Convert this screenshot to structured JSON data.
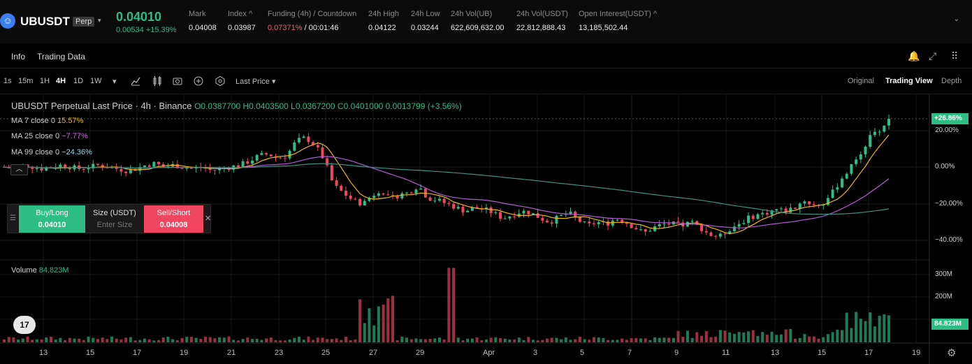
{
  "header": {
    "logo_glyph": "☺",
    "symbol": "UBUSDT",
    "badge": "Perp",
    "caret": "▾",
    "last_price": "0.04010",
    "change": "0.00534 +15.39%",
    "stats": [
      {
        "label": "Mark",
        "value": "0.04008"
      },
      {
        "label": "Index ^",
        "value": "0.03987"
      },
      {
        "label": "Funding (4h) / Countdown",
        "value_red": "0.07371%",
        "value": " / 00:01:46"
      },
      {
        "label": "24h High",
        "value": "0.04122"
      },
      {
        "label": "24h Low",
        "value": "0.03244"
      },
      {
        "label": "24h Vol(UB)",
        "value": "622,609,632.00"
      },
      {
        "label": "24h Vol(USDT)",
        "value": "22,812,888.43"
      },
      {
        "label": "Open Interest(USDT) ^",
        "value": ""
      }
    ],
    "open_interest_value": "13,185,502.44",
    "expand_caret": "⌄"
  },
  "tabs": {
    "info": "Info",
    "trading_data": "Trading Data",
    "bell_icon": "🔔",
    "expand_icon": "⤢",
    "grid_icon": "⠿"
  },
  "toolbar": {
    "intervals": [
      "1s",
      "15m",
      "1H",
      "4H",
      "1D",
      "1W"
    ],
    "active_interval": "4H",
    "more": "▾",
    "price_type": "Last Price ▾",
    "views": [
      "Original",
      "Trading View",
      "Depth"
    ],
    "active_view": "Trading View"
  },
  "chart": {
    "legend_title": "UBUSDT Perpetual Last Price · 4h · Binance",
    "legend_ohlc": "O0.0387700 H0.0403500 L0.0367200 C0.0401000 0.0013799 (+3.56%)",
    "ma": [
      {
        "label": "MA 7 close 0",
        "value": "15.57%"
      },
      {
        "label": "MA 25 close 0",
        "value": "−7.77%"
      },
      {
        "label": "MA 99 close 0",
        "value": "−24.36%"
      }
    ],
    "collapse_glyph": "︿",
    "trade": {
      "handle": "☰",
      "buy_label": "Buy/Long",
      "buy_price": "0.04010",
      "size_label": "Size (USDT)",
      "size_placeholder": "Enter Size",
      "sell_label": "Sell/Short",
      "sell_price": "0.04008",
      "close": "✕"
    },
    "volume_label": "Volume",
    "volume_value": "84.823M",
    "tv_logo": "17",
    "gear_icon": "⚙"
  },
  "chart_data": {
    "type": "candlestick",
    "y_axis_labels": [
      "20.00%",
      "0.00%",
      "−20.00%",
      "−40.00%"
    ],
    "y_axis_current": "+26.86%",
    "volume_axis_labels": [
      "300M",
      "200M"
    ],
    "volume_current": "84.823M",
    "x_axis_labels": [
      "13",
      "15",
      "17",
      "19",
      "21",
      "23",
      "25",
      "27",
      "29",
      "Apr",
      "3",
      "5",
      "7",
      "9",
      "11",
      "13",
      "15",
      "17",
      "19"
    ],
    "price_percent_path": [
      0,
      -1,
      1,
      0,
      -1,
      0,
      1,
      0,
      -1,
      0,
      1,
      0,
      -1,
      -2,
      -1,
      1,
      2,
      0,
      1,
      0,
      -1,
      0,
      -2,
      -1,
      0,
      1,
      3,
      6,
      7,
      5,
      6,
      14,
      16,
      12,
      4,
      -10,
      -14,
      -18,
      -20,
      -16,
      -12,
      -18,
      -15,
      -14,
      -10,
      -17,
      -18,
      -20,
      -22,
      -24,
      -22,
      -23,
      -25,
      -28,
      -26,
      -24,
      -25,
      -28,
      -30,
      -27,
      -25,
      -29,
      -32,
      -30,
      -31,
      -28,
      -30,
      -33,
      -36,
      -33,
      -31,
      -31,
      -32,
      -30,
      -33,
      -37,
      -38,
      -34,
      -31,
      -28,
      -26,
      -25,
      -23,
      -24,
      -22,
      -18,
      -21,
      -20,
      -14,
      -6,
      0,
      8,
      16,
      20,
      26
    ],
    "ma7_percent": 15.57,
    "ma25_percent": -7.77,
    "ma99_percent": -24.36
  }
}
